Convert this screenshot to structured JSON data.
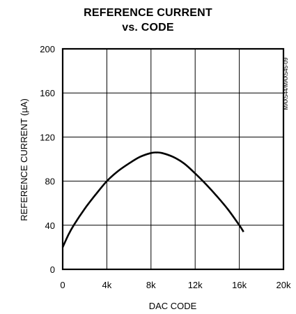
{
  "chart_data": {
    "type": "line",
    "title_line1": "REFERENCE CURRENT",
    "title_line2": "vs. CODE",
    "xlabel": "DAC CODE",
    "ylabel": "REFERENCE CURRENT (µA)",
    "side_note": "MAX544/MAX545-09",
    "xlim": [
      0,
      20000
    ],
    "ylim": [
      0,
      200
    ],
    "xticks": [
      0,
      4000,
      8000,
      12000,
      16000,
      20000
    ],
    "xtick_labels": [
      "0",
      "4k",
      "8k",
      "12k",
      "16k",
      "20k"
    ],
    "yticks": [
      0,
      40,
      80,
      120,
      160,
      200
    ],
    "ytick_labels": [
      "0",
      "40",
      "80",
      "120",
      "160",
      "200"
    ],
    "grid": true,
    "series": [
      {
        "x": [
          0,
          500,
          1000,
          2000,
          3000,
          4000,
          5000,
          6000,
          7000,
          8000,
          8500,
          9000,
          10000,
          11000,
          12000,
          13000,
          14000,
          15000,
          16000,
          16384
        ],
        "y": [
          20,
          31,
          40,
          55,
          68,
          80,
          89,
          96,
          102,
          105.5,
          106,
          105.5,
          102,
          96,
          87,
          77,
          66,
          54,
          40,
          34
        ]
      }
    ]
  }
}
